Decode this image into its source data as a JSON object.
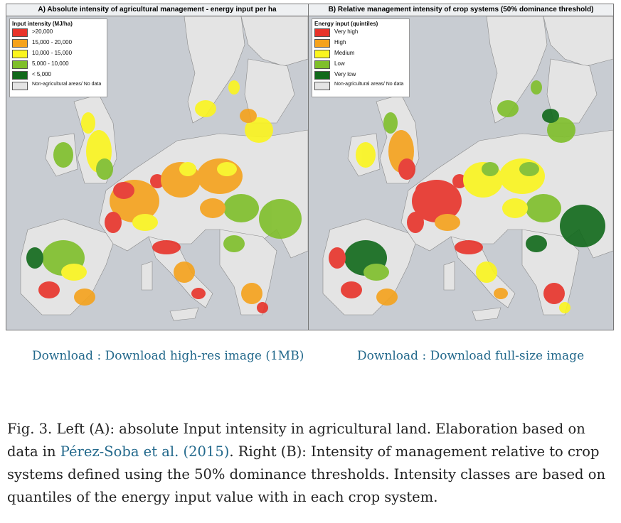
{
  "panel_a": {
    "title": "A) Absolute intensity of agricultural management - energy input per ha",
    "legend_title": "Input intensity (MJ/ha)",
    "legend": [
      {
        "label": ">20,000",
        "color": "#e8332a"
      },
      {
        "label": "15,000 - 20,000",
        "color": "#f5a21c"
      },
      {
        "label": "10,000 - 15,000",
        "color": "#fbf51e"
      },
      {
        "label": "5,000 - 10,000",
        "color": "#7fbf2a"
      },
      {
        "label": "< 5,000",
        "color": "#11691b"
      },
      {
        "label": "Non-agricultural areas/ No data",
        "color": "#e4e4e4"
      }
    ]
  },
  "panel_b": {
    "title": "B) Relative management intensity of crop systems (50% dominance threshold)",
    "legend_title": "Energy input (quintiles)",
    "legend": [
      {
        "label": "Very high",
        "color": "#e8332a"
      },
      {
        "label": "High",
        "color": "#f5a21c"
      },
      {
        "label": "Medium",
        "color": "#fbf51e"
      },
      {
        "label": "Low",
        "color": "#7fbf2a"
      },
      {
        "label": "Very low",
        "color": "#11691b"
      },
      {
        "label": "Non-agricultural areas/ No data",
        "color": "#e4e4e4"
      }
    ]
  },
  "downloads": {
    "left": "Download : Download high-res image (1MB)",
    "right": "Download : Download full-size image"
  },
  "caption": {
    "part1": "Fig. 3. Left (A): absolute Input intensity in agricultural land. Elaboration based on data in ",
    "link": "Pérez-Soba et al. (2015)",
    "part2": ". Right (B): Intensity of management relative to crop systems defined using the 50% dominance thresholds. Intensity classes are based on quantiles of the energy input value with in each crop system."
  },
  "colors": {
    "sea": "#c8ccd2",
    "nonagri": "#e4e4e4",
    "link": "#23698c"
  }
}
